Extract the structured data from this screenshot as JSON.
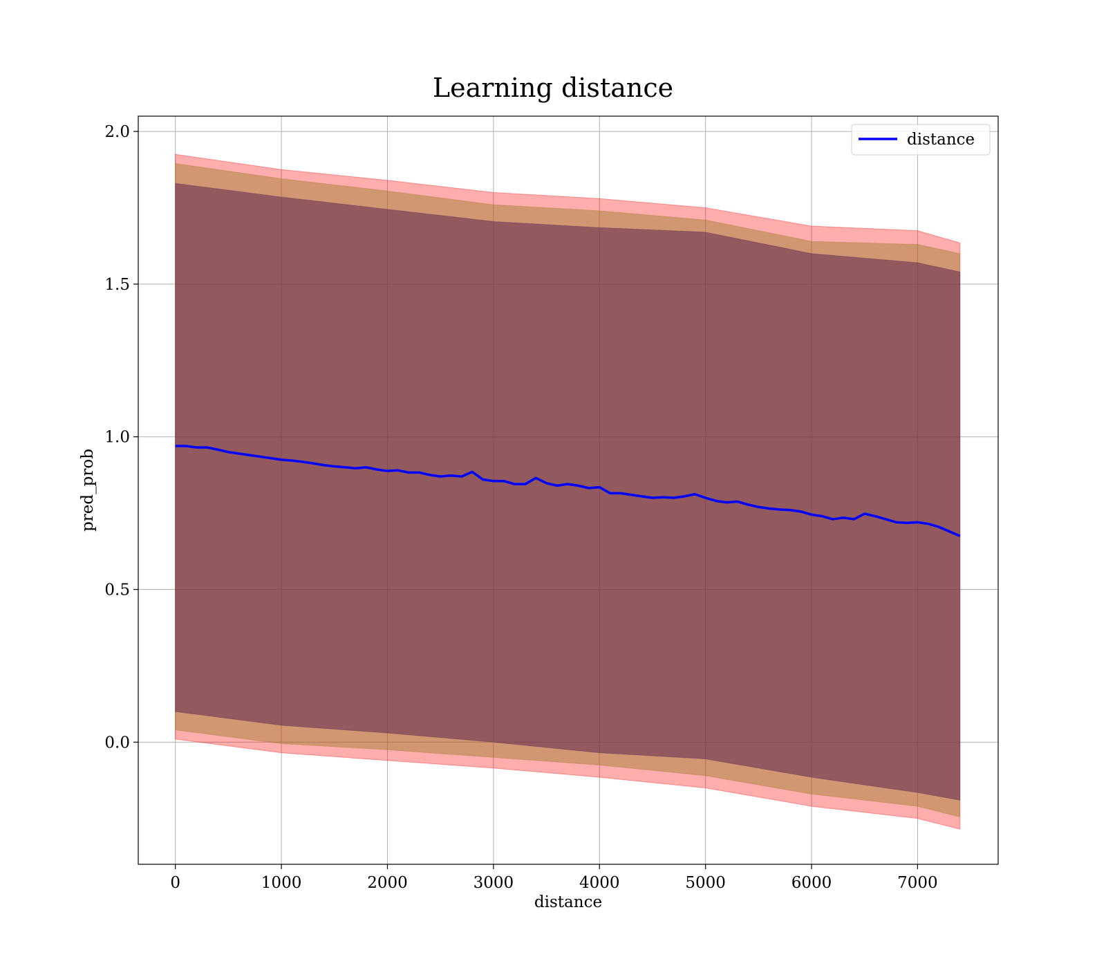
{
  "chart_data": {
    "type": "line",
    "title": "Learning distance",
    "xlabel": "distance",
    "ylabel": "pred_prob",
    "xlim": [
      -350,
      7760
    ],
    "ylim": [
      -0.4,
      2.05
    ],
    "xticks": [
      0,
      1000,
      2000,
      3000,
      4000,
      5000,
      6000,
      7000
    ],
    "xtick_labels": [
      "0",
      "1000",
      "2000",
      "3000",
      "4000",
      "5000",
      "6000",
      "7000"
    ],
    "yticks": [
      0.0,
      0.5,
      1.0,
      1.5,
      2.0
    ],
    "ytick_labels": [
      "0.0",
      "0.5",
      "1.0",
      "1.5",
      "2.0"
    ],
    "grid": true,
    "legend": {
      "position": "top-right",
      "entries": [
        "distance"
      ]
    },
    "colors": {
      "line": "#0000ff",
      "outer_band": "#ff0000",
      "middle_band": "#9a7a2a",
      "inner_band": "#5e2850"
    },
    "series": [
      {
        "name": "distance",
        "x": [
          0,
          100,
          200,
          300,
          400,
          500,
          600,
          700,
          800,
          900,
          1000,
          1100,
          1200,
          1300,
          1400,
          1500,
          1600,
          1700,
          1800,
          1900,
          2000,
          2100,
          2200,
          2300,
          2400,
          2500,
          2600,
          2700,
          2800,
          2900,
          3000,
          3100,
          3200,
          3300,
          3400,
          3500,
          3600,
          3700,
          3800,
          3900,
          4000,
          4100,
          4200,
          4300,
          4400,
          4500,
          4600,
          4700,
          4800,
          4900,
          5000,
          5100,
          5200,
          5300,
          5400,
          5500,
          5600,
          5700,
          5800,
          5900,
          6000,
          6100,
          6200,
          6300,
          6400,
          6500,
          6600,
          6700,
          6800,
          6900,
          7000,
          7100,
          7200,
          7300,
          7400
        ],
        "values": [
          0.97,
          0.97,
          0.965,
          0.965,
          0.958,
          0.95,
          0.945,
          0.94,
          0.935,
          0.93,
          0.925,
          0.922,
          0.918,
          0.913,
          0.907,
          0.903,
          0.9,
          0.897,
          0.9,
          0.893,
          0.888,
          0.89,
          0.883,
          0.883,
          0.875,
          0.87,
          0.873,
          0.87,
          0.885,
          0.86,
          0.855,
          0.855,
          0.845,
          0.845,
          0.865,
          0.848,
          0.84,
          0.845,
          0.84,
          0.832,
          0.835,
          0.815,
          0.815,
          0.81,
          0.805,
          0.8,
          0.802,
          0.8,
          0.805,
          0.812,
          0.8,
          0.79,
          0.785,
          0.788,
          0.778,
          0.77,
          0.765,
          0.762,
          0.76,
          0.755,
          0.745,
          0.74,
          0.73,
          0.735,
          0.73,
          0.748,
          0.74,
          0.73,
          0.72,
          0.718,
          0.72,
          0.715,
          0.705,
          0.69,
          0.675
        ]
      },
      {
        "name": "",
        "x": [
          0,
          1000,
          2000,
          3000,
          4000,
          5000,
          6000,
          7000,
          7400
        ],
        "upper": [
          1.925,
          1.875,
          1.84,
          1.8,
          1.78,
          1.75,
          1.69,
          1.675,
          1.635
        ],
        "lower": [
          0.01,
          -0.035,
          -0.06,
          -0.085,
          -0.115,
          -0.15,
          -0.21,
          -0.25,
          -0.285
        ]
      },
      {
        "name": "",
        "x": [
          0,
          1000,
          2000,
          3000,
          4000,
          5000,
          6000,
          7000,
          7400
        ],
        "upper": [
          1.895,
          1.845,
          1.805,
          1.76,
          1.74,
          1.71,
          1.64,
          1.63,
          1.6
        ],
        "lower": [
          0.04,
          -0.005,
          -0.025,
          -0.05,
          -0.075,
          -0.11,
          -0.17,
          -0.21,
          -0.245
        ]
      },
      {
        "name": "",
        "x": [
          0,
          1000,
          2000,
          3000,
          4000,
          5000,
          6000,
          7000,
          7400
        ],
        "upper": [
          1.83,
          1.785,
          1.745,
          1.705,
          1.685,
          1.67,
          1.6,
          1.57,
          1.54
        ],
        "lower": [
          0.1,
          0.055,
          0.03,
          0.0,
          -0.035,
          -0.055,
          -0.115,
          -0.165,
          -0.19
        ]
      }
    ]
  }
}
